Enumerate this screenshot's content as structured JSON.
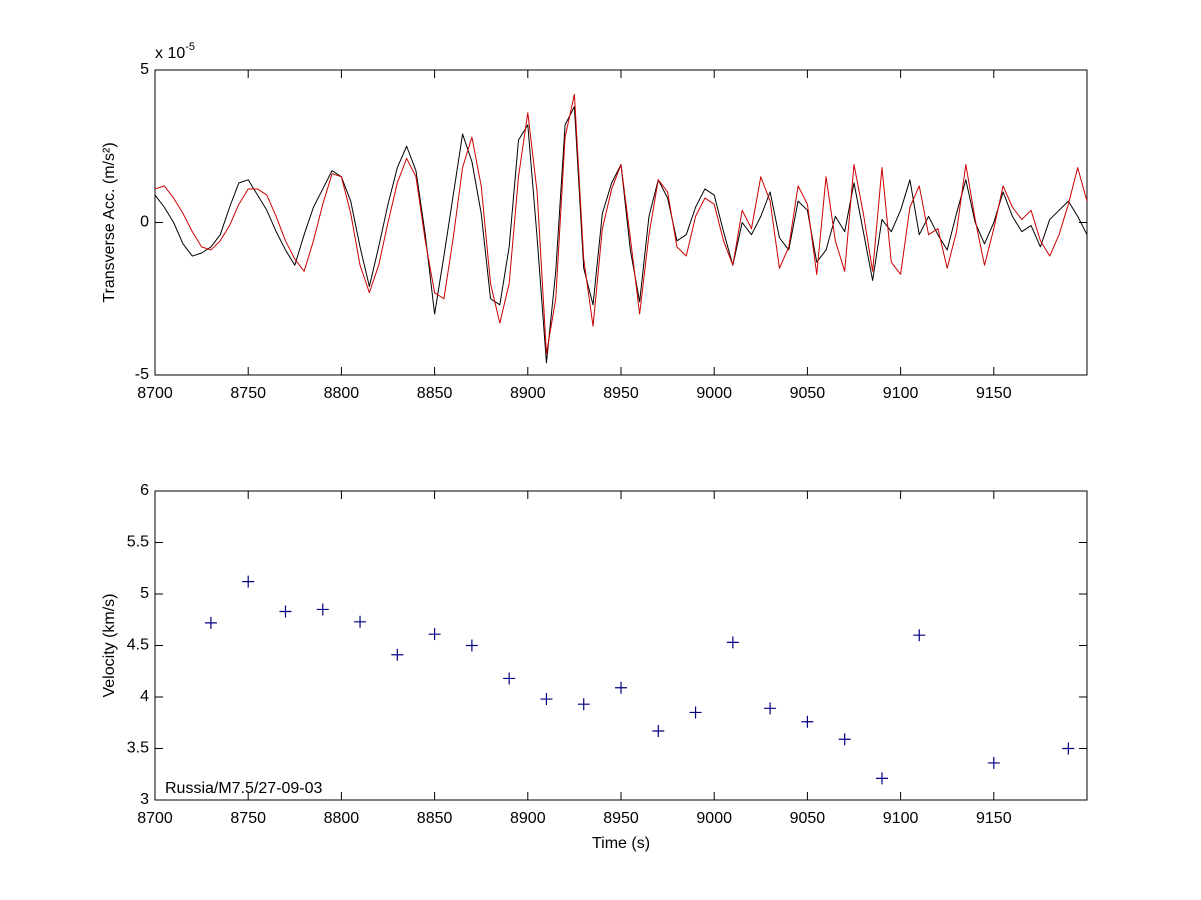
{
  "chart_data": [
    {
      "type": "line",
      "ylabel": "Transverse Acc. (m/s²)",
      "y_multiplier": {
        "base": "x 10",
        "exponent": "-5"
      },
      "xlim": [
        8700,
        9200
      ],
      "xticks": [
        8700,
        8750,
        8800,
        8850,
        8900,
        8950,
        9000,
        9050,
        9100,
        9150
      ],
      "ylim": [
        -5,
        5
      ],
      "yticks": [
        -5,
        0,
        5
      ],
      "x": [
        8700,
        8705,
        8710,
        8715,
        8720,
        8725,
        8730,
        8735,
        8740,
        8745,
        8750,
        8755,
        8760,
        8765,
        8770,
        8775,
        8780,
        8785,
        8790,
        8795,
        8800,
        8805,
        8810,
        8815,
        8820,
        8825,
        8830,
        8835,
        8840,
        8845,
        8850,
        8855,
        8860,
        8865,
        8870,
        8875,
        8880,
        8885,
        8890,
        8895,
        8900,
        8905,
        8910,
        8915,
        8920,
        8925,
        8930,
        8935,
        8940,
        8945,
        8950,
        8955,
        8960,
        8965,
        8970,
        8975,
        8980,
        8985,
        8990,
        8995,
        9000,
        9005,
        9010,
        9015,
        9020,
        9025,
        9030,
        9035,
        9040,
        9045,
        9050,
        9055,
        9060,
        9065,
        9070,
        9075,
        9080,
        9085,
        9090,
        9095,
        9100,
        9105,
        9110,
        9115,
        9120,
        9125,
        9130,
        9135,
        9140,
        9145,
        9150,
        9155,
        9160,
        9165,
        9170,
        9175,
        9180,
        9185,
        9190,
        9195,
        9200
      ],
      "series": [
        {
          "color": "#000000",
          "values": [
            0.9,
            0.5,
            0.0,
            -0.7,
            -1.1,
            -1.0,
            -0.8,
            -0.4,
            0.5,
            1.3,
            1.4,
            0.9,
            0.4,
            -0.3,
            -0.9,
            -1.4,
            -0.4,
            0.5,
            1.1,
            1.7,
            1.5,
            0.7,
            -0.8,
            -2.1,
            -0.8,
            0.6,
            1.8,
            2.5,
            1.7,
            -0.4,
            -3.0,
            -1.1,
            0.9,
            2.9,
            2.0,
            0.3,
            -2.5,
            -2.7,
            -0.8,
            2.7,
            3.2,
            -0.5,
            -4.6,
            -1.6,
            3.2,
            3.8,
            -1.5,
            -2.7,
            0.3,
            1.3,
            1.9,
            -0.9,
            -2.6,
            0.2,
            1.4,
            0.8,
            -0.6,
            -0.4,
            0.5,
            1.1,
            0.9,
            -0.3,
            -1.4,
            0.0,
            -0.4,
            0.2,
            1.0,
            -0.5,
            -0.9,
            0.7,
            0.4,
            -1.3,
            -0.9,
            0.2,
            -0.3,
            1.3,
            -0.3,
            -1.9,
            0.1,
            -0.3,
            0.4,
            1.4,
            -0.4,
            0.2,
            -0.4,
            -0.9,
            0.3,
            1.4,
            0.0,
            -0.7,
            0.0,
            1.0,
            0.2,
            -0.3,
            -0.1,
            -0.8,
            0.1,
            0.4,
            0.7,
            0.2,
            -0.4
          ]
        },
        {
          "color": "#cc0000",
          "values": [
            1.1,
            1.2,
            0.8,
            0.3,
            -0.3,
            -0.8,
            -0.9,
            -0.6,
            -0.1,
            0.6,
            1.1,
            1.1,
            0.9,
            0.2,
            -0.6,
            -1.2,
            -1.6,
            -0.6,
            0.6,
            1.6,
            1.5,
            0.3,
            -1.4,
            -2.3,
            -1.4,
            0.0,
            1.3,
            2.1,
            1.5,
            -0.6,
            -2.3,
            -2.5,
            -0.5,
            1.8,
            2.8,
            1.2,
            -2.0,
            -3.3,
            -2.0,
            1.5,
            3.6,
            1.0,
            -4.3,
            -2.5,
            2.8,
            4.2,
            -1.2,
            -3.4,
            -0.2,
            1.1,
            1.9,
            -0.5,
            -3.0,
            -0.4,
            1.4,
            1.0,
            -0.8,
            -1.1,
            0.2,
            0.8,
            0.6,
            -0.6,
            -1.4,
            0.4,
            -0.2,
            1.5,
            0.7,
            -1.5,
            -0.8,
            1.2,
            0.6,
            -1.7,
            1.5,
            -0.6,
            -1.6,
            1.9,
            0.3,
            -1.6,
            1.8,
            -1.3,
            -1.7,
            0.5,
            1.2,
            -0.4,
            -0.2,
            -1.5,
            -0.3,
            1.9,
            0.1,
            -1.4,
            -0.2,
            1.2,
            0.5,
            0.1,
            0.4,
            -0.6,
            -1.1,
            -0.4,
            0.6,
            1.8,
            0.7
          ]
        }
      ]
    },
    {
      "type": "scatter",
      "xlabel": "Time (s)",
      "ylabel": "Velocity (km/s)",
      "annotation": "Russia/M7.5/27-09-03",
      "xlim": [
        8700,
        9200
      ],
      "xticks": [
        8700,
        8750,
        8800,
        8850,
        8900,
        8950,
        9000,
        9050,
        9100,
        9150
      ],
      "ylim": [
        3,
        6
      ],
      "yticks": [
        3,
        3.5,
        4,
        4.5,
        5,
        5.5,
        6
      ],
      "color": "#000080",
      "marker": "+",
      "x": [
        8730,
        8750,
        8770,
        8790,
        8810,
        8830,
        8850,
        8870,
        8890,
        8910,
        8930,
        8950,
        8970,
        8990,
        9010,
        9030,
        9050,
        9070,
        9090,
        9110,
        9150,
        9190
      ],
      "values": [
        4.72,
        5.12,
        4.83,
        4.85,
        4.73,
        4.41,
        4.61,
        4.5,
        4.18,
        3.98,
        3.93,
        4.09,
        3.67,
        3.85,
        4.53,
        3.89,
        3.76,
        3.59,
        3.21,
        4.6,
        3.36,
        3.5
      ]
    }
  ]
}
